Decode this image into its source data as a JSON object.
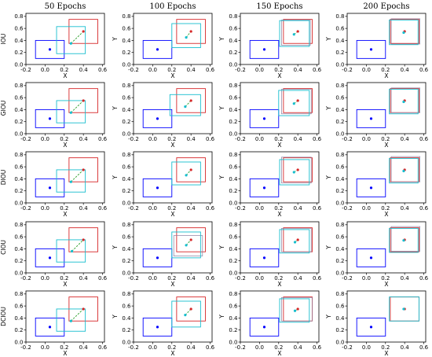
{
  "figure": {
    "column_titles": [
      "50 Epochs",
      "100 Epochs",
      "150 Epochs",
      "200 Epochs"
    ],
    "row_labels": [
      "IOU",
      "GIOU",
      "DIOU",
      "CIOU",
      "DCIOU"
    ],
    "colors": {
      "target_box": "#0000ff",
      "ground_truth_box": "#d62728",
      "ground_truth_center": "#d62728",
      "predicted_center": "#17becf",
      "predicted_box": "#17becf",
      "intermediate_box": "#8c7fa0",
      "trajectory": "#2ca02c",
      "target_center": "#0000ff"
    }
  },
  "chart_data": {
    "type": "scatter",
    "layout": "grid 5 rows x 4 columns",
    "xlabel": "X",
    "ylabel": "Y",
    "xlim": [
      -0.2,
      0.62
    ],
    "ylim": [
      0.0,
      0.85
    ],
    "xticks": [
      "-0.2",
      "0.0",
      "0.2",
      "0.4",
      "0.6"
    ],
    "yticks": [
      "0.0",
      "0.2",
      "0.4",
      "0.6",
      "0.8"
    ],
    "target_box": {
      "x0": -0.1,
      "y0": 0.1,
      "x1": 0.2,
      "y1": 0.4,
      "center": [
        0.05,
        0.25
      ]
    },
    "ground_truth_box": {
      "x0": 0.25,
      "y0": 0.35,
      "x1": 0.55,
      "y1": 0.75,
      "center": [
        0.4,
        0.55
      ]
    },
    "panels": [
      {
        "row": "IOU",
        "column": "50 Epochs",
        "pred_box": [
          0.12,
          0.18,
          0.42,
          0.63
        ],
        "pred_center": [
          0.27,
          0.35
        ],
        "extra_boxes": []
      },
      {
        "row": "IOU",
        "column": "100 Epochs",
        "pred_box": [
          0.2,
          0.28,
          0.5,
          0.68
        ],
        "pred_center": [
          0.35,
          0.45
        ],
        "extra_boxes": []
      },
      {
        "row": "IOU",
        "column": "150 Epochs",
        "pred_box": [
          0.21,
          0.3,
          0.52,
          0.73
        ],
        "pred_center": [
          0.36,
          0.5
        ],
        "extra_boxes": [
          [
            0.23,
            0.32,
            0.53,
            0.74
          ]
        ]
      },
      {
        "row": "IOU",
        "column": "200 Epochs",
        "pred_box": [
          0.24,
          0.33,
          0.54,
          0.74
        ],
        "pred_center": [
          0.39,
          0.53
        ],
        "extra_boxes": [
          [
            0.26,
            0.34,
            0.56,
            0.76
          ]
        ]
      },
      {
        "row": "GIOU",
        "column": "50 Epochs",
        "pred_box": [
          0.12,
          0.18,
          0.42,
          0.55
        ],
        "pred_center": [
          0.27,
          0.35
        ],
        "extra_boxes": []
      },
      {
        "row": "GIOU",
        "column": "100 Epochs",
        "pred_box": [
          0.18,
          0.3,
          0.5,
          0.65
        ],
        "pred_center": [
          0.34,
          0.45
        ],
        "extra_boxes": []
      },
      {
        "row": "GIOU",
        "column": "150 Epochs",
        "pred_box": [
          0.2,
          0.3,
          0.52,
          0.72
        ],
        "pred_center": [
          0.36,
          0.5
        ],
        "extra_boxes": [
          [
            0.23,
            0.33,
            0.54,
            0.74
          ]
        ]
      },
      {
        "row": "GIOU",
        "column": "200 Epochs",
        "pred_box": [
          0.24,
          0.33,
          0.54,
          0.74
        ],
        "pred_center": [
          0.39,
          0.53
        ],
        "extra_boxes": [
          [
            0.26,
            0.35,
            0.56,
            0.76
          ]
        ]
      },
      {
        "row": "DIOU",
        "column": "50 Epochs",
        "pred_box": [
          0.12,
          0.18,
          0.42,
          0.55
        ],
        "pred_center": [
          0.27,
          0.35
        ],
        "extra_boxes": []
      },
      {
        "row": "DIOU",
        "column": "100 Epochs",
        "pred_box": [
          0.2,
          0.3,
          0.5,
          0.68
        ],
        "pred_center": [
          0.35,
          0.46
        ],
        "extra_boxes": []
      },
      {
        "row": "DIOU",
        "column": "150 Epochs",
        "pred_box": [
          0.21,
          0.3,
          0.52,
          0.72
        ],
        "pred_center": [
          0.36,
          0.51
        ],
        "extra_boxes": [
          [
            0.23,
            0.33,
            0.54,
            0.76
          ]
        ]
      },
      {
        "row": "DIOU",
        "column": "200 Epochs",
        "pred_box": [
          0.24,
          0.33,
          0.54,
          0.74
        ],
        "pred_center": [
          0.39,
          0.53
        ],
        "extra_boxes": [
          [
            0.26,
            0.35,
            0.56,
            0.77
          ]
        ]
      },
      {
        "row": "CIOU",
        "column": "50 Epochs",
        "pred_box": [
          0.12,
          0.18,
          0.42,
          0.55
        ],
        "pred_center": [
          0.28,
          0.36
        ],
        "extra_boxes": []
      },
      {
        "row": "CIOU",
        "column": "100 Epochs",
        "pred_box": [
          0.2,
          0.25,
          0.5,
          0.68
        ],
        "pred_center": [
          0.35,
          0.46
        ],
        "extra_boxes": [
          [
            0.22,
            0.28,
            0.52,
            0.62
          ]
        ]
      },
      {
        "row": "CIOU",
        "column": "150 Epochs",
        "pred_box": [
          0.21,
          0.33,
          0.52,
          0.72
        ],
        "pred_center": [
          0.37,
          0.51
        ],
        "extra_boxes": [
          [
            0.23,
            0.35,
            0.54,
            0.74
          ]
        ]
      },
      {
        "row": "CIOU",
        "column": "200 Epochs",
        "pred_box": [
          0.24,
          0.34,
          0.54,
          0.74
        ],
        "pred_center": [
          0.39,
          0.54
        ],
        "extra_boxes": [
          [
            0.26,
            0.36,
            0.56,
            0.77
          ]
        ]
      },
      {
        "row": "DCIOU",
        "column": "50 Epochs",
        "pred_box": [
          0.12,
          0.18,
          0.42,
          0.55
        ],
        "pred_center": [
          0.27,
          0.35
        ],
        "extra_boxes": []
      },
      {
        "row": "DCIOU",
        "column": "100 Epochs",
        "pred_box": [
          0.2,
          0.25,
          0.5,
          0.68
        ],
        "pred_center": [
          0.34,
          0.45
        ],
        "extra_boxes": []
      },
      {
        "row": "DCIOU",
        "column": "150 Epochs",
        "pred_box": [
          0.21,
          0.33,
          0.52,
          0.72
        ],
        "pred_center": [
          0.37,
          0.52
        ],
        "extra_boxes": [
          [
            0.23,
            0.35,
            0.55,
            0.74
          ]
        ]
      },
      {
        "row": "DCIOU",
        "column": "200 Epochs",
        "pred_box": [
          0.24,
          0.35,
          0.55,
          0.75
        ],
        "pred_center": [
          0.39,
          0.55
        ],
        "extra_boxes": []
      }
    ]
  }
}
